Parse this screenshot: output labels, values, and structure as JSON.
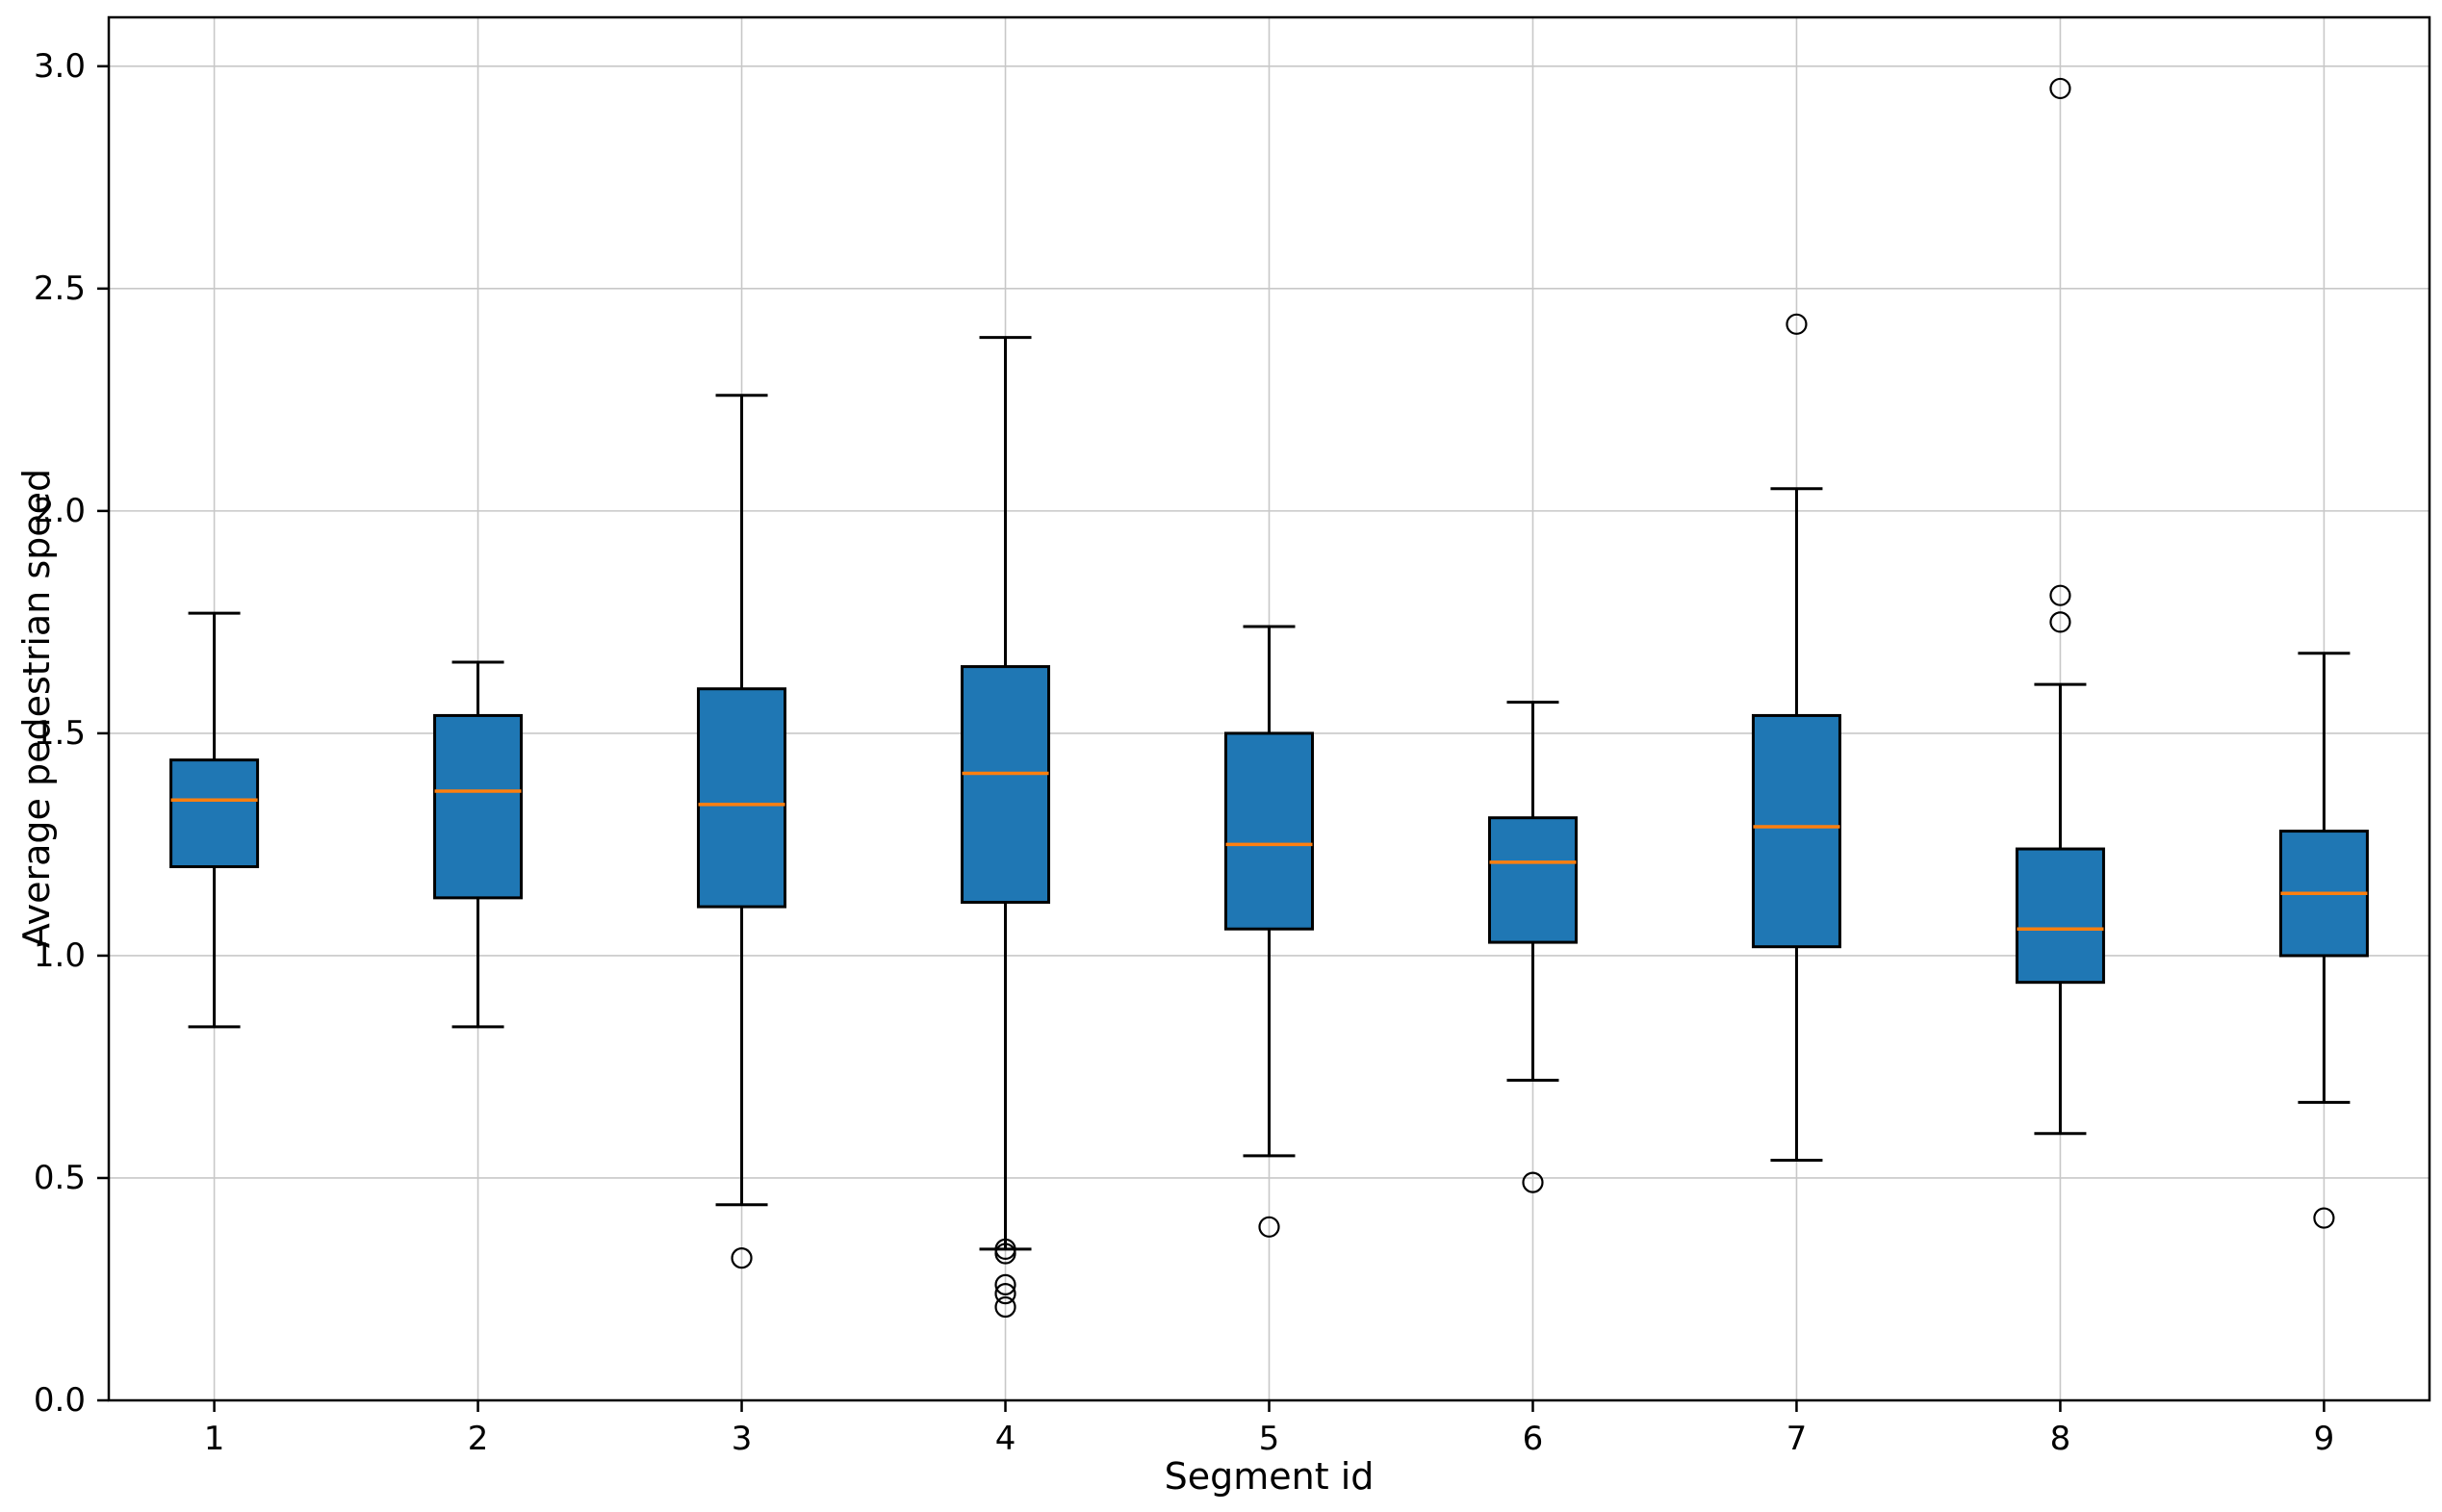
{
  "chart_data": {
    "type": "boxplot",
    "title": "",
    "xlabel": "Segment id",
    "ylabel": "Average pedestrian speed",
    "categories": [
      "1",
      "2",
      "3",
      "4",
      "5",
      "6",
      "7",
      "8",
      "9"
    ],
    "xlim": [
      0.6,
      9.4
    ],
    "ylim": [
      0.0,
      3.11
    ],
    "yticks": [
      0.0,
      0.5,
      1.0,
      1.5,
      2.0,
      2.5,
      3.0
    ],
    "grid": true,
    "legend": "none",
    "colors": {
      "box_fill": "#1f77b4",
      "median": "#ff7f0e",
      "line": "#000000",
      "grid": "#c8c8c8",
      "background": "#ffffff"
    },
    "series": [
      {
        "segment": "1",
        "whislo": 0.84,
        "q1": 1.2,
        "med": 1.35,
        "q3": 1.44,
        "whishi": 1.77,
        "outliers": []
      },
      {
        "segment": "2",
        "whislo": 0.84,
        "q1": 1.13,
        "med": 1.37,
        "q3": 1.54,
        "whishi": 1.66,
        "outliers": []
      },
      {
        "segment": "3",
        "whislo": 0.44,
        "q1": 1.11,
        "med": 1.34,
        "q3": 1.6,
        "whishi": 2.26,
        "outliers": [
          0.32
        ]
      },
      {
        "segment": "4",
        "whislo": 0.34,
        "q1": 1.12,
        "med": 1.41,
        "q3": 1.65,
        "whishi": 2.39,
        "outliers": [
          0.34,
          0.33,
          0.26,
          0.24,
          0.21
        ]
      },
      {
        "segment": "5",
        "whislo": 0.55,
        "q1": 1.06,
        "med": 1.25,
        "q3": 1.5,
        "whishi": 1.74,
        "outliers": [
          0.39
        ]
      },
      {
        "segment": "6",
        "whislo": 0.72,
        "q1": 1.03,
        "med": 1.21,
        "q3": 1.31,
        "whishi": 1.57,
        "outliers": [
          0.49
        ]
      },
      {
        "segment": "7",
        "whislo": 0.54,
        "q1": 1.02,
        "med": 1.29,
        "q3": 1.54,
        "whishi": 2.05,
        "outliers": [
          2.42
        ]
      },
      {
        "segment": "8",
        "whislo": 0.6,
        "q1": 0.94,
        "med": 1.06,
        "q3": 1.24,
        "whishi": 1.61,
        "outliers": [
          1.75,
          1.81,
          2.95
        ]
      },
      {
        "segment": "9",
        "whislo": 0.67,
        "q1": 1.0,
        "med": 1.14,
        "q3": 1.28,
        "whishi": 1.68,
        "outliers": [
          0.41
        ]
      }
    ]
  }
}
